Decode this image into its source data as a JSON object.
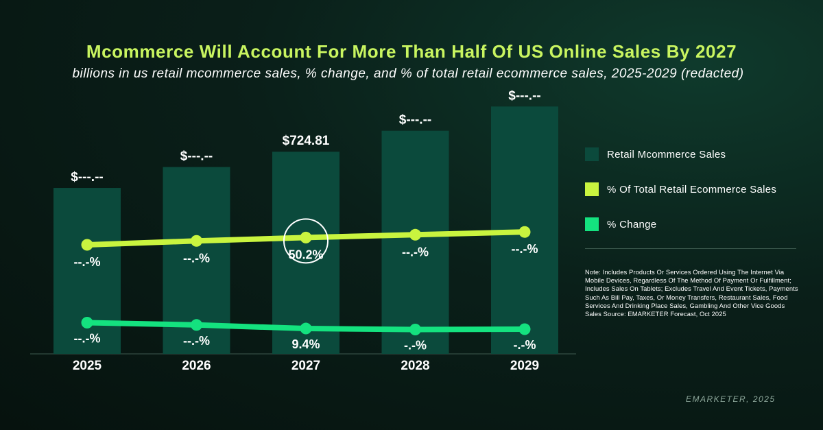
{
  "chart_data": {
    "type": "bar+line",
    "title": "Mcommerce Will Account For More Than Half Of US Online Sales By 2027",
    "subtitle": "billions in us retail mcommerce sales, % change, and % of total retail ecommerce sales, 2025-2029 (redacted)",
    "categories": [
      "2025",
      "2026",
      "2027",
      "2028",
      "2029"
    ],
    "series": [
      {
        "name": "Retail Mcommerce Sales",
        "type": "bar",
        "color": "#0b4a3c",
        "values": [
          595,
          670,
          724.81,
          800,
          887
        ],
        "labels": [
          "$---.--",
          "$---.--",
          "$724.81",
          "$---.--",
          "$---.--"
        ]
      },
      {
        "name": "% Of Total Retail Ecommerce Sales",
        "type": "line",
        "color": "#c9f43f",
        "values": [
          48.9,
          49.6,
          50.2,
          50.7,
          51.2
        ],
        "labels": [
          "--.-%",
          "--.-%",
          "50.2%",
          "--.-%",
          "--.-%"
        ]
      },
      {
        "name": "% Change",
        "type": "line",
        "color": "#14e27f",
        "values": [
          11.2,
          10.5,
          9.4,
          9.1,
          9.2
        ],
        "labels": [
          "--.-%",
          "--.-%",
          "9.4%",
          "-.-%",
          "-.-%"
        ]
      }
    ],
    "highlight_category": "2027",
    "ylim_bars": [
      0,
      900
    ],
    "ylim_share": [
      30,
      60
    ],
    "ylim_change": [
      0,
      30
    ]
  },
  "legend": {
    "items": [
      {
        "label": "Retail Mcommerce Sales",
        "color": "#0b4a3c"
      },
      {
        "label": "% Of Total Retail Ecommerce Sales",
        "color": "#c9f43f"
      },
      {
        "label": "% Change",
        "color": "#14e27f"
      }
    ]
  },
  "note": "Note: Includes Products Or Services Ordered Using The Internet Via Mobile Devices, Regardless Of The Method Of Payment Or Fulfillment; Includes Sales On Tablets; Excludes Travel And Event Tickets, Payments Such As Bill Pay, Taxes, Or Money Transfers, Restaurant Sales, Food Services And Drinking Place Sales, Gambling And Other Vice Goods Sales Source: EMARKETER Forecast, Oct 2025",
  "source": "EMARKETER, 2025"
}
